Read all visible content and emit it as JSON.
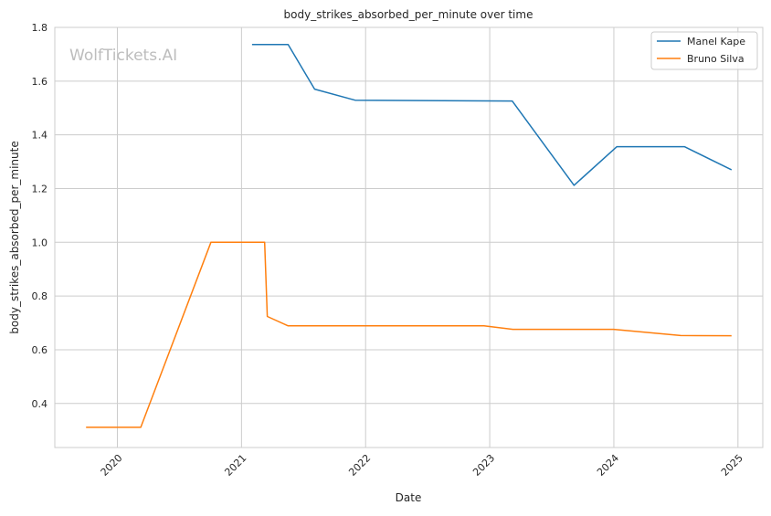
{
  "watermark": "WolfTickets.AI",
  "chart_data": {
    "type": "line",
    "title": "body_strikes_absorbed_per_minute over time",
    "xlabel": "Date",
    "ylabel": "body_strikes_absorbed_per_minute",
    "xlim": [
      "2019-07-01",
      "2025-03-15"
    ],
    "ylim": [
      0.236,
      1.8
    ],
    "x_ticks": [
      "2020",
      "2021",
      "2022",
      "2023",
      "2024",
      "2025"
    ],
    "y_ticks": [
      "0.4",
      "0.6",
      "0.8",
      "1.0",
      "1.2",
      "1.4",
      "1.6",
      "1.8"
    ],
    "grid": true,
    "legend_position": "top-right",
    "series": [
      {
        "name": "Manel Kape",
        "color": "#1f77b4",
        "x": [
          "2021-02-01",
          "2021-05-18",
          "2021-08-04",
          "2021-12-01",
          "2023-03-08",
          "2023-09-06",
          "2024-01-10",
          "2024-07-27",
          "2024-12-13"
        ],
        "y": [
          1.736,
          1.736,
          1.57,
          1.529,
          1.526,
          1.212,
          1.356,
          1.356,
          1.27
        ]
      },
      {
        "name": "Bruno Silva",
        "color": "#ff7f0e",
        "x": [
          "2019-10-01",
          "2020-03-10",
          "2020-10-03",
          "2021-03-10",
          "2021-03-18",
          "2021-05-18",
          "2022-12-15",
          "2023-03-10",
          "2023-12-31",
          "2024-07-16",
          "2024-12-13"
        ],
        "y": [
          0.311,
          0.311,
          1.0,
          1.0,
          0.724,
          0.689,
          0.689,
          0.676,
          0.676,
          0.653,
          0.652
        ]
      }
    ]
  }
}
